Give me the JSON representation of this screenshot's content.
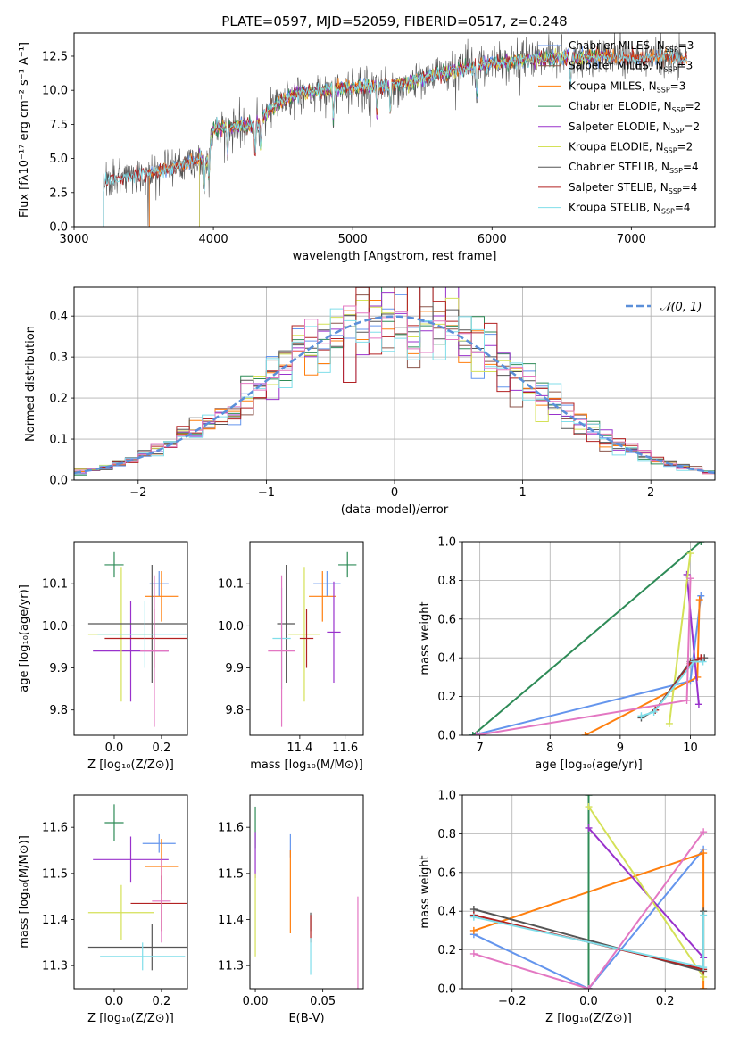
{
  "chart_data": [
    {
      "id": "spectrum",
      "type": "line",
      "title": "PLATE=0597, MJD=52059, FIBERID=0517, z=0.248",
      "xlabel": "wavelength [Angstrom, rest frame]",
      "ylabel": "Flux [fλ10⁻¹⁷ erg cm⁻² s⁻¹ A⁻¹]",
      "xlim": [
        3000,
        7600
      ],
      "ylim": [
        0,
        14.2
      ],
      "xticks": [
        3000,
        4000,
        5000,
        6000,
        7000
      ],
      "yticks": [
        0.0,
        2.5,
        5.0,
        7.5,
        10.0,
        12.5
      ],
      "grid": false,
      "legend_position": "top-right",
      "continuum": {
        "x": [
          3200,
          3300,
          3400,
          3500,
          3600,
          3700,
          3800,
          3900,
          3950,
          4000,
          4100,
          4200,
          4300,
          4400,
          4500,
          4600,
          4800,
          5000,
          5200,
          5400,
          5600,
          5800,
          6000,
          6200,
          6400,
          6600,
          6800,
          7000,
          7200,
          7400
        ],
        "y": [
          3.2,
          3.5,
          3.7,
          3.9,
          4.1,
          4.3,
          4.6,
          5.0,
          4.8,
          7.2,
          7.3,
          7.4,
          7.4,
          8.5,
          9.3,
          9.8,
          10.0,
          10.2,
          10.3,
          10.6,
          11.2,
          11.6,
          12.0,
          12.2,
          12.4,
          12.4,
          12.5,
          12.3,
          12.5,
          12.3
        ]
      },
      "series": [
        {
          "name": "Chabrier MILES, N",
          "sub": "SSP",
          "post": "=3",
          "color": "#6495ed",
          "start": 3540,
          "end": 7400
        },
        {
          "name": "Salpeter MILES, N",
          "sub": "SSP",
          "post": "=3",
          "color": "#8c564b",
          "start": 3540,
          "end": 7400
        },
        {
          "name": "Kroupa MILES, N",
          "sub": "SSP",
          "post": "=3",
          "color": "#ff7f0e",
          "start": 3540,
          "end": 7400
        },
        {
          "name": "Chabrier ELODIE, N",
          "sub": "SSP",
          "post": "=2",
          "color": "#2e8b57",
          "start": 3900,
          "end": 6800
        },
        {
          "name": "Salpeter ELODIE, N",
          "sub": "SSP",
          "post": "=2",
          "color": "#9932cc",
          "start": 3900,
          "end": 6800
        },
        {
          "name": "Kroupa ELODIE, N",
          "sub": "SSP",
          "post": "=2",
          "color": "#d4e157",
          "start": 3900,
          "end": 6800
        },
        {
          "name": "Chabrier STELIB, N",
          "sub": "SSP",
          "post": "=4",
          "color": "#555555",
          "start": 3210,
          "end": 7400
        },
        {
          "name": "Salpeter STELIB, N",
          "sub": "SSP",
          "post": "=4",
          "color": "#b22222",
          "start": 3210,
          "end": 7400
        },
        {
          "name": "Kroupa STELIB, N",
          "sub": "SSP",
          "post": "=4",
          "color": "#80deea",
          "start": 3210,
          "end": 7400
        }
      ]
    },
    {
      "id": "residuals",
      "type": "line",
      "xlabel": "(data-model)/error",
      "ylabel": "Normed distribution",
      "xlim": [
        -2.5,
        2.5
      ],
      "ylim": [
        0,
        0.47
      ],
      "xticks": [
        -2,
        -1,
        0,
        1,
        2
      ],
      "xtick_labels": [
        "−2",
        "−1",
        "0",
        "1",
        "2"
      ],
      "yticks": [
        0.0,
        0.1,
        0.2,
        0.3,
        0.4
      ],
      "grid": true,
      "legend_position": "top-right",
      "bin_width": 0.1,
      "gaussian": {
        "name": "𝒩(0, 1)",
        "mean": 0,
        "sigma": 1,
        "color": "#5b8fd9"
      }
    },
    {
      "id": "age-vs-Z",
      "type": "scatter",
      "xlabel": "Z [log₁₀(Z/Z⊙)]",
      "ylabel": "age  [log₁₀(age/yr)]",
      "xlim": [
        -0.17,
        0.31
      ],
      "ylim": [
        9.74,
        10.2
      ],
      "xticks": [
        0.0,
        0.2
      ],
      "yticks": [
        9.8,
        9.9,
        10.0,
        10.1
      ],
      "points": [
        {
          "color": "#6495ed",
          "x": 0.19,
          "y": 10.1,
          "xerr": 0.04,
          "yerr": 0.03
        },
        {
          "color": "#ff7f0e",
          "x": 0.2,
          "y": 10.07,
          "xerr": 0.07,
          "yerr": 0.06
        },
        {
          "color": "#2e8b57",
          "x": 0.0,
          "y": 10.145,
          "xerr": 0.04,
          "yerr": 0.03
        },
        {
          "color": "#9932cc",
          "x": 0.07,
          "y": 9.94,
          "xerr": 0.16,
          "yerr": 0.12
        },
        {
          "color": "#d4e157",
          "x": 0.03,
          "y": 9.98,
          "xerr": 0.14,
          "yerr": 0.16
        },
        {
          "color": "#555555",
          "x": 0.16,
          "y": 10.005,
          "xerr": 0.27,
          "yerr": 0.14
        },
        {
          "color": "#b22222",
          "x": 0.17,
          "y": 9.97,
          "xerr": 0.21,
          "yerr": 0.07
        },
        {
          "color": "#80deea",
          "x": 0.13,
          "y": 9.98,
          "xerr": 0.2,
          "yerr": 0.08
        },
        {
          "color": "#e377c2",
          "x": 0.17,
          "y": 9.94,
          "xerr": 0.06,
          "yerr": 0.18
        }
      ]
    },
    {
      "id": "age-vs-mass",
      "type": "scatter",
      "xlabel": "mass [log₁₀(M/M⊙)]",
      "ylabel": "",
      "xlim": [
        11.18,
        11.68
      ],
      "ylim": [
        9.74,
        10.2
      ],
      "xticks": [
        11.4,
        11.6
      ],
      "yticks": [
        9.8,
        9.9,
        10.0,
        10.1
      ],
      "points": [
        {
          "color": "#6495ed",
          "x": 11.52,
          "y": 10.1,
          "xerr": 0.06,
          "yerr": 0.03
        },
        {
          "color": "#ff7f0e",
          "x": 11.5,
          "y": 10.07,
          "xerr": 0.06,
          "yerr": 0.06
        },
        {
          "color": "#2e8b57",
          "x": 11.61,
          "y": 10.145,
          "xerr": 0.04,
          "yerr": 0.03
        },
        {
          "color": "#9932cc",
          "x": 11.55,
          "y": 9.985,
          "xerr": 0.03,
          "yerr": 0.12
        },
        {
          "color": "#d4e157",
          "x": 11.42,
          "y": 9.98,
          "xerr": 0.07,
          "yerr": 0.16
        },
        {
          "color": "#555555",
          "x": 11.34,
          "y": 10.005,
          "xerr": 0.04,
          "yerr": 0.14
        },
        {
          "color": "#b22222",
          "x": 11.43,
          "y": 9.97,
          "xerr": 0.03,
          "yerr": 0.07
        },
        {
          "color": "#80deea",
          "x": 11.32,
          "y": 9.97,
          "xerr": 0.04,
          "yerr": 0.12
        },
        {
          "color": "#e377c2",
          "x": 11.32,
          "y": 9.94,
          "xerr": 0.06,
          "yerr": 0.18
        }
      ]
    },
    {
      "id": "weight-vs-age",
      "type": "line",
      "xlabel": "age  [log₁₀(age/yr)]",
      "ylabel": "mass weight",
      "xlim": [
        6.75,
        10.35
      ],
      "ylim": [
        0,
        1
      ],
      "xticks": [
        7,
        8,
        9,
        10
      ],
      "yticks": [
        0.0,
        0.2,
        0.4,
        0.6,
        0.8,
        1.0
      ],
      "grid": true,
      "series": [
        {
          "color": "#6495ed",
          "x": [
            6.9,
            10.0,
            10.15
          ],
          "y": [
            0.0,
            0.28,
            0.72
          ]
        },
        {
          "color": "#ff7f0e",
          "x": [
            8.5,
            10.1,
            10.13
          ],
          "y": [
            0.0,
            0.3,
            0.7
          ]
        },
        {
          "color": "#2e8b57",
          "x": [
            6.9,
            10.15
          ],
          "y": [
            0.0,
            1.0
          ]
        },
        {
          "color": "#9932cc",
          "x": [
            9.95,
            10.12
          ],
          "y": [
            0.83,
            0.16
          ]
        },
        {
          "color": "#d4e157",
          "x": [
            9.7,
            10.0
          ],
          "y": [
            0.06,
            0.94
          ]
        },
        {
          "color": "#555555",
          "x": [
            9.3,
            9.5,
            10.0,
            10.2
          ],
          "y": [
            0.09,
            0.13,
            0.38,
            0.4
          ]
        },
        {
          "color": "#b22222",
          "x": [
            9.5,
            10.0,
            10.15
          ],
          "y": [
            0.13,
            0.37,
            0.4
          ]
        },
        {
          "color": "#80deea",
          "x": [
            9.3,
            9.48,
            10.05,
            10.18
          ],
          "y": [
            0.1,
            0.12,
            0.38,
            0.38
          ]
        },
        {
          "color": "#e377c2",
          "x": [
            6.95,
            9.95,
            10.0
          ],
          "y": [
            0.0,
            0.18,
            0.81
          ]
        }
      ]
    },
    {
      "id": "mass-vs-Z",
      "type": "scatter",
      "xlabel": "Z [log₁₀(Z/Z⊙)]",
      "ylabel": "mass [log₁₀(M/M⊙)]",
      "xlim": [
        -0.17,
        0.31
      ],
      "ylim": [
        11.25,
        11.67
      ],
      "xticks": [
        0.0,
        0.2
      ],
      "yticks": [
        11.3,
        11.4,
        11.5,
        11.6
      ],
      "points": [
        {
          "color": "#6495ed",
          "x": 0.19,
          "y": 11.565,
          "xerr": 0.07,
          "yerr": 0.02
        },
        {
          "color": "#ff7f0e",
          "x": 0.2,
          "y": 11.515,
          "xerr": 0.07,
          "yerr": 0.06
        },
        {
          "color": "#2e8b57",
          "x": 0.0,
          "y": 11.61,
          "xerr": 0.04,
          "yerr": 0.04
        },
        {
          "color": "#9932cc",
          "x": 0.07,
          "y": 11.53,
          "xerr": 0.16,
          "yerr": 0.05
        },
        {
          "color": "#d4e157",
          "x": 0.03,
          "y": 11.415,
          "xerr": 0.14,
          "yerr": 0.06
        },
        {
          "color": "#555555",
          "x": 0.16,
          "y": 11.34,
          "xerr": 0.27,
          "yerr": 0.05
        },
        {
          "color": "#b22222",
          "x": 0.2,
          "y": 11.435,
          "xerr": 0.13,
          "yerr": 0.06
        },
        {
          "color": "#80deea",
          "x": 0.12,
          "y": 11.32,
          "xerr": 0.18,
          "yerr": 0.03
        },
        {
          "color": "#e377c2",
          "x": 0.2,
          "y": 11.44,
          "xerr": 0.04,
          "yerr": 0.09
        }
      ]
    },
    {
      "id": "mass-vs-ebv",
      "type": "scatter",
      "xlabel": "E(B-V)",
      "ylabel": "",
      "xlim": [
        -0.004,
        0.08
      ],
      "ylim": [
        11.25,
        11.67
      ],
      "xticks": [
        0.0,
        0.05
      ],
      "xtick_labels": [
        "0.00",
        "0.05"
      ],
      "yticks": [
        11.3,
        11.4,
        11.5,
        11.6
      ],
      "points": [
        {
          "color": "#6495ed",
          "x": 0.026,
          "y": 11.56,
          "xerr": 0,
          "yerr": 0.025
        },
        {
          "color": "#ff7f0e",
          "x": 0.026,
          "y": 11.46,
          "xerr": 0,
          "yerr": 0.09
        },
        {
          "color": "#2e8b57",
          "x": 0.0,
          "y": 11.6,
          "xerr": 0,
          "yerr": 0.045
        },
        {
          "color": "#9932cc",
          "x": 0.0,
          "y": 11.54,
          "xerr": 0,
          "yerr": 0.05
        },
        {
          "color": "#d4e157",
          "x": 0.0,
          "y": 11.41,
          "xerr": 0,
          "yerr": 0.09
        },
        {
          "color": "#555555",
          "x": 0.041,
          "y": 11.395,
          "xerr": 0,
          "yerr": 0.02
        },
        {
          "color": "#b22222",
          "x": 0.041,
          "y": 11.38,
          "xerr": 0,
          "yerr": 0.03
        },
        {
          "color": "#80deea",
          "x": 0.041,
          "y": 11.32,
          "xerr": 0,
          "yerr": 0.04
        },
        {
          "color": "#e377c2",
          "x": 0.076,
          "y": 11.35,
          "xerr": 0,
          "yerr": 0.1
        }
      ]
    },
    {
      "id": "weight-vs-Z",
      "type": "line",
      "xlabel": "Z [log₁₀(Z/Z⊙)]",
      "ylabel": "mass weight",
      "xlim": [
        -0.33,
        0.33
      ],
      "ylim": [
        0,
        1
      ],
      "xticks": [
        -0.2,
        0.0,
        0.2
      ],
      "xtick_labels": [
        "−0.2",
        "0.0",
        "0.2"
      ],
      "yticks": [
        0.0,
        0.2,
        0.4,
        0.6,
        0.8,
        1.0
      ],
      "grid": true,
      "series": [
        {
          "color": "#6495ed",
          "x": [
            -0.3,
            0.0,
            0.3
          ],
          "y": [
            0.28,
            0.0,
            0.72
          ]
        },
        {
          "color": "#ff7f0e",
          "x": [
            -0.3,
            0.3,
            0.3
          ],
          "y": [
            0.3,
            0.7,
            0.0
          ]
        },
        {
          "color": "#2e8b57",
          "x": [
            0.0,
            0.0
          ],
          "y": [
            0.0,
            1.0
          ]
        },
        {
          "color": "#9932cc",
          "x": [
            0.0,
            0.3
          ],
          "y": [
            0.83,
            0.16
          ]
        },
        {
          "color": "#d4e157",
          "x": [
            0.0,
            0.3
          ],
          "y": [
            0.94,
            0.06
          ]
        },
        {
          "color": "#555555",
          "x": [
            -0.3,
            0.3,
            0.3
          ],
          "y": [
            0.41,
            0.09,
            0.4
          ]
        },
        {
          "color": "#b22222",
          "x": [
            -0.3,
            0.3
          ],
          "y": [
            0.38,
            0.1
          ]
        },
        {
          "color": "#80deea",
          "x": [
            -0.3,
            0.3,
            0.3
          ],
          "y": [
            0.37,
            0.11,
            0.38
          ]
        },
        {
          "color": "#e377c2",
          "x": [
            -0.3,
            0.0,
            0.3
          ],
          "y": [
            0.18,
            0.0,
            0.81
          ]
        }
      ]
    }
  ]
}
